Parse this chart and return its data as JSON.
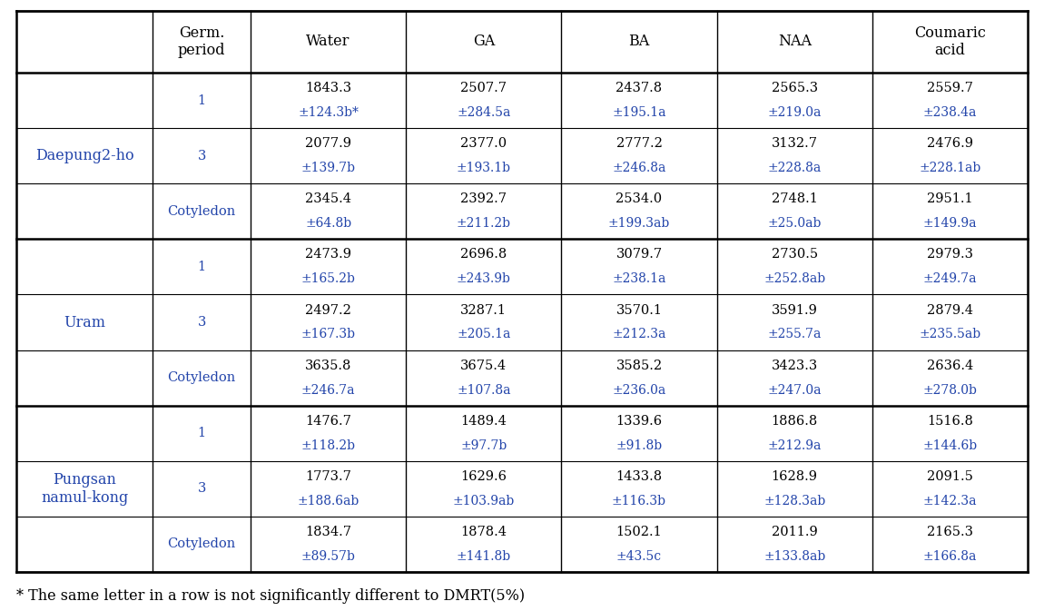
{
  "col_headers": [
    "Germ.\nperiod",
    "Water",
    "GA",
    "BA",
    "NAA",
    "Coumaric\nacid"
  ],
  "cultivars": [
    "Daepung2-ho",
    "Uram",
    "Pungsan\nnamul-kong"
  ],
  "germ_periods": [
    "1",
    "3",
    "Cotyledon"
  ],
  "table_data": [
    [
      [
        "1843.3",
        "±124.3b*",
        "2507.7",
        "±284.5a",
        "2437.8",
        "±195.1a",
        "2565.3",
        "±219.0a",
        "2559.7",
        "±238.4a"
      ],
      [
        "2077.9",
        "±139.7b",
        "2377.0",
        "±193.1b",
        "2777.2",
        "±246.8a",
        "3132.7",
        "±228.8a",
        "2476.9",
        "±228.1ab"
      ],
      [
        "2345.4",
        "±64.8b",
        "2392.7",
        "±211.2b",
        "2534.0",
        "±199.3ab",
        "2748.1",
        "±25.0ab",
        "2951.1",
        "±149.9a"
      ]
    ],
    [
      [
        "2473.9",
        "±165.2b",
        "2696.8",
        "±243.9b",
        "3079.7",
        "±238.1a",
        "2730.5",
        "±252.8ab",
        "2979.3",
        "±249.7a"
      ],
      [
        "2497.2",
        "±167.3b",
        "3287.1",
        "±205.1a",
        "3570.1",
        "±212.3a",
        "3591.9",
        "±255.7a",
        "2879.4",
        "±235.5ab"
      ],
      [
        "3635.8",
        "±246.7a",
        "3675.4",
        "±107.8a",
        "3585.2",
        "±236.0a",
        "3423.3",
        "±247.0a",
        "2636.4",
        "±278.0b"
      ]
    ],
    [
      [
        "1476.7",
        "±118.2b",
        "1489.4",
        "±97.7b",
        "1339.6",
        "±91.8b",
        "1886.8",
        "±212.9a",
        "1516.8",
        "±144.6b"
      ],
      [
        "1773.7",
        "±188.6ab",
        "1629.6",
        "±103.9ab",
        "1433.8",
        "±116.3b",
        "1628.9",
        "±128.3ab",
        "2091.5",
        "±142.3a"
      ],
      [
        "1834.7",
        "±89.57b",
        "1878.4",
        "±141.8b",
        "1502.1",
        "±43.5c",
        "2011.9",
        "±133.8ab",
        "2165.3",
        "±166.8a"
      ]
    ]
  ],
  "footnote": "* The same letter in a row is not significantly different to DMRT(5%)",
  "main_value_color": "#000000",
  "sd_value_color": "#2244aa",
  "cultivar_color": "#2244aa",
  "header_color": "#000000",
  "germ_period_color": "#2244aa",
  "line_color": "#000000",
  "bg_color": "#ffffff",
  "header_fontsize": 11.5,
  "cell_fontsize": 10.5,
  "cultivar_fontsize": 11.5,
  "footnote_fontsize": 11.5
}
